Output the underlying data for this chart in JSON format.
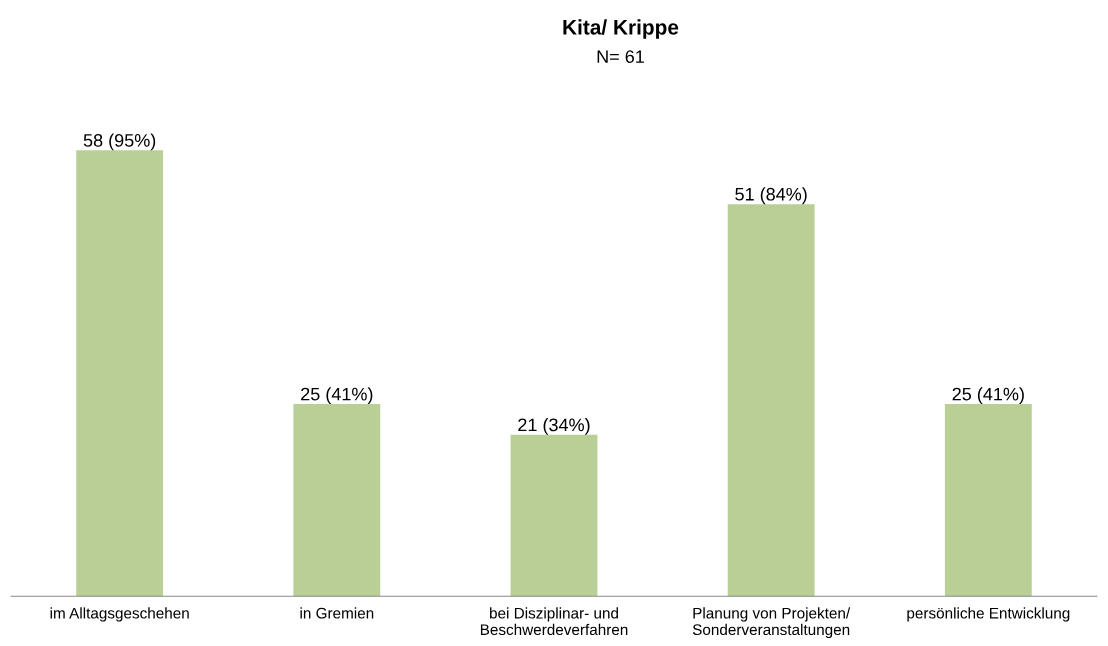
{
  "chart_data": {
    "type": "bar",
    "title": "Kita/ Krippe",
    "subtitle": "N= 61",
    "categories": [
      "im Alltagsgeschehen",
      "in Gremien",
      "bei Disziplinar- und\nBeschwerdeverfahren",
      "Planung von Projekten/\nSonderveranstaltungen",
      "persönliche Entwicklung"
    ],
    "values": [
      58,
      25,
      21,
      51,
      25
    ],
    "value_labels": [
      "58 (95%)",
      "25 (41%)",
      "21 (34%)",
      "51 (84%)",
      "25 (41%)"
    ],
    "color": "#b9cf96",
    "grid": false,
    "legend": false
  }
}
